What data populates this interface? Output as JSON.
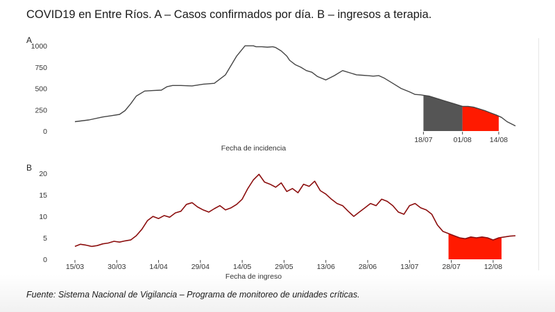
{
  "title": "COVID19 en Entre Ríos. A – Casos confirmados por día. B – ingresos a terapia.",
  "source": "Fuente: Sistema Nacional de Vigilancia – Programa de monitoreo de unidades críticas.",
  "colors": {
    "line_a": "#444444",
    "fill_dark": "#555555",
    "fill_red": "#ff1a00",
    "line_b": "#8b0d0d"
  },
  "chart_data": [
    {
      "panel_label": "A",
      "type": "area",
      "xlabel": "Fecha de incidencia",
      "ylabel": "",
      "ylim": [
        0,
        1050
      ],
      "yticks": [
        0,
        250,
        500,
        750,
        1000
      ],
      "xticks": [
        {
          "x": 125,
          "label": "18/07"
        },
        {
          "x": 139,
          "label": "01/08"
        },
        {
          "x": 152,
          "label": "14/08"
        }
      ],
      "x_unit": "day index from 15/03",
      "x": [
        0,
        5,
        10,
        13,
        16,
        18,
        20,
        22,
        25,
        28,
        31,
        33,
        35,
        38,
        42,
        46,
        50,
        54,
        58,
        61,
        64,
        65,
        67,
        69,
        71,
        72,
        74,
        76,
        77,
        79,
        81,
        83,
        85,
        87,
        90,
        93,
        96,
        99,
        101,
        103,
        105,
        107,
        109,
        111,
        114,
        117,
        120,
        122,
        124,
        125,
        127,
        130,
        133,
        136,
        139,
        141,
        143,
        145,
        147,
        149,
        151,
        153,
        155,
        158
      ],
      "y": [
        110,
        130,
        165,
        180,
        195,
        240,
        320,
        410,
        470,
        475,
        480,
        520,
        535,
        535,
        530,
        550,
        560,
        660,
        880,
        1000,
        1000,
        990,
        990,
        985,
        990,
        980,
        940,
        880,
        830,
        780,
        750,
        710,
        690,
        640,
        600,
        650,
        710,
        680,
        660,
        655,
        650,
        645,
        650,
        620,
        560,
        500,
        460,
        430,
        425,
        420,
        410,
        380,
        350,
        320,
        290,
        290,
        280,
        260,
        240,
        215,
        190,
        160,
        110,
        60
      ],
      "shaded_regions": [
        {
          "from": 125,
          "to": 139,
          "color": "dark"
        },
        {
          "from": 139,
          "to": 152,
          "color": "red"
        }
      ]
    },
    {
      "panel_label": "B",
      "type": "line",
      "xlabel": "Fecha de ingreso",
      "ylabel": "",
      "ylim": [
        0,
        21
      ],
      "yticks": [
        0,
        5,
        10,
        15,
        20
      ],
      "xticks": [
        {
          "x": 0,
          "label": "15/03"
        },
        {
          "x": 15,
          "label": "30/03"
        },
        {
          "x": 30,
          "label": "14/04"
        },
        {
          "x": 45,
          "label": "29/04"
        },
        {
          "x": 60,
          "label": "14/05"
        },
        {
          "x": 75,
          "label": "29/05"
        },
        {
          "x": 90,
          "label": "13/06"
        },
        {
          "x": 105,
          "label": "28/06"
        },
        {
          "x": 120,
          "label": "13/07"
        },
        {
          "x": 135,
          "label": "28/07"
        },
        {
          "x": 150,
          "label": "12/08"
        }
      ],
      "x_unit": "day index from 15/03",
      "x": [
        0,
        2,
        4,
        6,
        8,
        10,
        12,
        14,
        16,
        18,
        20,
        22,
        24,
        26,
        28,
        30,
        32,
        34,
        36,
        38,
        40,
        42,
        44,
        46,
        48,
        50,
        52,
        54,
        56,
        58,
        60,
        62,
        64,
        66,
        68,
        70,
        72,
        74,
        76,
        78,
        80,
        82,
        84,
        86,
        88,
        90,
        92,
        94,
        96,
        98,
        100,
        102,
        104,
        106,
        108,
        110,
        112,
        114,
        116,
        118,
        120,
        122,
        124,
        126,
        128,
        130,
        132,
        134,
        136,
        138,
        140,
        142,
        144,
        146,
        148,
        150,
        152,
        154,
        156,
        158
      ],
      "y": [
        3,
        3.5,
        3.3,
        3,
        3.2,
        3.6,
        3.8,
        4.2,
        4.0,
        4.3,
        4.5,
        5.5,
        7,
        9,
        10,
        9.5,
        10.2,
        9.8,
        10.8,
        11.2,
        12.8,
        13.2,
        12.2,
        11.5,
        11.0,
        11.8,
        12.5,
        11.5,
        12.0,
        12.8,
        14.0,
        16.5,
        18.5,
        19.8,
        18.0,
        17.5,
        16.8,
        17.8,
        15.8,
        16.5,
        15.5,
        17.5,
        17.0,
        18.2,
        16.0,
        15.2,
        14.0,
        13.0,
        12.5,
        11.2,
        10.0,
        11.0,
        12.0,
        13.0,
        12.5,
        14.0,
        13.5,
        12.5,
        11.0,
        10.5,
        12.5,
        13.0,
        12.0,
        11.5,
        10.5,
        8.0,
        6.5,
        6.0,
        5.5,
        5.0,
        4.8,
        5.2,
        5.0,
        5.2,
        5.0,
        4.5,
        5.0,
        5.2,
        5.4,
        5.5
      ],
      "shaded_regions": [
        {
          "from": 134,
          "to": 153,
          "color": "red"
        }
      ]
    }
  ]
}
